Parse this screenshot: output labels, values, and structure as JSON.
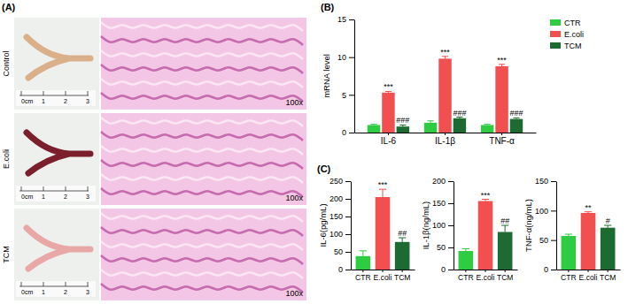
{
  "figure_a": {
    "label": "(A)",
    "rows": [
      {
        "label": "Control",
        "magnification": "100x",
        "ruler": [
          "0cm",
          "1",
          "2",
          "3"
        ],
        "color": "#d9b08a"
      },
      {
        "label": "E.coli",
        "magnification": "100x",
        "ruler": [
          "0cm",
          "1",
          "2",
          "3"
        ],
        "color": "#7a1f2b"
      },
      {
        "label": "TCM",
        "magnification": "100x",
        "ruler": [
          "0cm",
          "1",
          "2",
          "3"
        ],
        "color": "#e8a9a6"
      }
    ]
  },
  "chart_data": [
    {
      "type": "bar",
      "annotations": [
        "(B)"
      ],
      "y_label": "mRNA level",
      "categories": [
        "IL-6",
        "IL-1β",
        "TNF-α"
      ],
      "series": [
        {
          "name": "CTR",
          "color": "#2ecc40",
          "values": [
            1.0,
            1.3,
            1.0
          ],
          "errors": [
            0.1,
            0.25,
            0.1
          ]
        },
        {
          "name": "E.coli",
          "color": "#f25050",
          "values": [
            5.3,
            9.8,
            8.8
          ],
          "errors": [
            0.15,
            0.3,
            0.25
          ],
          "significance": [
            "***",
            "***",
            "***"
          ]
        },
        {
          "name": "TCM",
          "color": "#1e6b32",
          "values": [
            0.8,
            1.9,
            1.8
          ],
          "errors": [
            0.2,
            0.15,
            0.15
          ],
          "significance": [
            "###",
            "###",
            "###"
          ]
        }
      ],
      "ylim": [
        0,
        15
      ],
      "yticks": [
        0,
        5,
        10,
        15
      ],
      "legend": "top-right"
    },
    {
      "type": "bar",
      "annotations": [
        "(C)"
      ],
      "y_label": "IL-6(pg/mL)",
      "categories": [
        "CTR",
        "E.coli",
        "TCM"
      ],
      "values": [
        38,
        205,
        78
      ],
      "errors": [
        15,
        22,
        12
      ],
      "significance": [
        null,
        "***",
        "##"
      ],
      "colors": [
        "#2ecc40",
        "#f25050",
        "#1e6b32"
      ],
      "ylim": [
        0,
        250
      ],
      "yticks": [
        0,
        50,
        100,
        150,
        200,
        250
      ]
    },
    {
      "type": "bar",
      "y_label": "IL-1β(ng/mL)",
      "categories": [
        "CTR",
        "E.coli",
        "TCM"
      ],
      "values": [
        42,
        155,
        85
      ],
      "errors": [
        5,
        4,
        15
      ],
      "significance": [
        null,
        "***",
        "##"
      ],
      "colors": [
        "#2ecc40",
        "#f25050",
        "#1e6b32"
      ],
      "ylim": [
        0,
        200
      ],
      "yticks": [
        0,
        50,
        100,
        150,
        200
      ]
    },
    {
      "type": "bar",
      "y_label": "TNF-α(ng/mL)",
      "categories": [
        "CTR",
        "E.coli",
        "TCM"
      ],
      "values": [
        57,
        96,
        71
      ],
      "errors": [
        3,
        2,
        4
      ],
      "significance": [
        null,
        "**",
        "#"
      ],
      "colors": [
        "#2ecc40",
        "#f25050",
        "#1e6b32"
      ],
      "ylim": [
        0,
        150
      ],
      "yticks": [
        0,
        50,
        100,
        150
      ]
    }
  ]
}
